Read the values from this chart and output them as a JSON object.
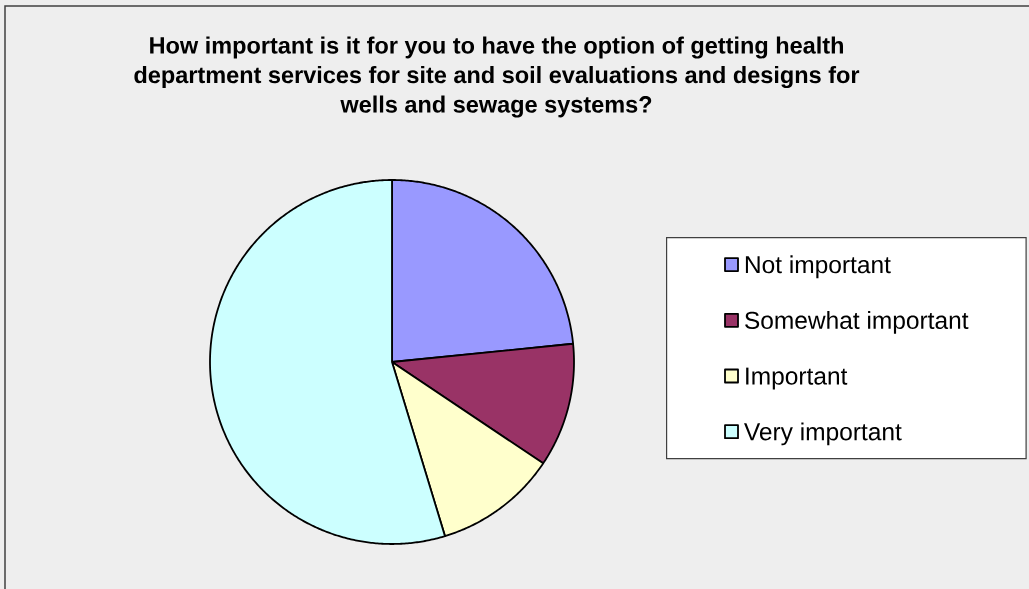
{
  "chart_data": {
    "type": "pie",
    "title": "How important is it for you to have the option of getting health department services for site and soil evaluations and designs for wells and sewage systems?",
    "categories": [
      "Not important",
      "Somewhat important",
      "Important",
      "Very important"
    ],
    "values": [
      23.4,
      11.0,
      10.9,
      54.7
    ],
    "colors": [
      "#9999ff",
      "#993366",
      "#ffffcc",
      "#ccffff"
    ],
    "legend": "right"
  }
}
